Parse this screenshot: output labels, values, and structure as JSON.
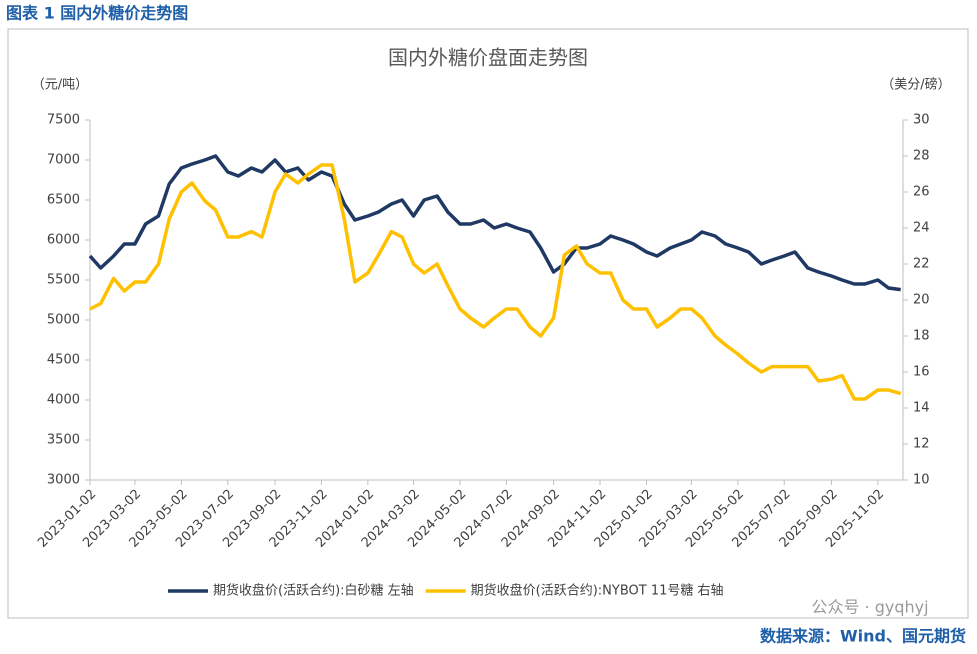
{
  "header": {
    "title": "图表 1  国内外糖价走势图"
  },
  "chart_data": {
    "type": "line",
    "title": "国内外糖价盘面走势图",
    "y_label": "（元/吨）",
    "y2_label": "（美分/磅）",
    "x": [
      "2023-01-02",
      "2023-01-16",
      "2023-02-02",
      "2023-02-16",
      "2023-03-02",
      "2023-03-16",
      "2023-04-02",
      "2023-04-16",
      "2023-05-02",
      "2023-05-16",
      "2023-06-02",
      "2023-06-16",
      "2023-07-02",
      "2023-07-16",
      "2023-08-02",
      "2023-08-16",
      "2023-09-02",
      "2023-09-16",
      "2023-10-02",
      "2023-10-16",
      "2023-11-02",
      "2023-11-16",
      "2023-12-02",
      "2023-12-16",
      "2024-01-02",
      "2024-01-16",
      "2024-02-02",
      "2024-02-16",
      "2024-03-02",
      "2024-03-16",
      "2024-04-02",
      "2024-04-16",
      "2024-05-02",
      "2024-05-16",
      "2024-06-02",
      "2024-06-16",
      "2024-07-02",
      "2024-07-16",
      "2024-08-02",
      "2024-08-16",
      "2024-09-02",
      "2024-09-16",
      "2024-10-02",
      "2024-10-16",
      "2024-11-02",
      "2024-11-16",
      "2024-12-02",
      "2024-12-16",
      "2025-01-02",
      "2025-01-16",
      "2025-02-02",
      "2025-02-16",
      "2025-03-02",
      "2025-03-16",
      "2025-04-02",
      "2025-04-16",
      "2025-05-02",
      "2025-05-16",
      "2025-06-02",
      "2025-06-16",
      "2025-07-02",
      "2025-07-16",
      "2025-08-02",
      "2025-08-16",
      "2025-09-02",
      "2025-09-16",
      "2025-10-02",
      "2025-10-16",
      "2025-11-02",
      "2025-11-16",
      "2025-12-02"
    ],
    "series": [
      {
        "name": "期货收盘价(活跃合约):白砂糖  左轴",
        "color": "#1f3864",
        "axis": "y",
        "values": [
          5800,
          5650,
          5800,
          5950,
          5950,
          6200,
          6300,
          6700,
          6900,
          6950,
          7000,
          7050,
          6850,
          6800,
          6900,
          6850,
          7000,
          6850,
          6900,
          6750,
          6850,
          6800,
          6450,
          6250,
          6300,
          6350,
          6450,
          6500,
          6300,
          6500,
          6550,
          6350,
          6200,
          6200,
          6250,
          6150,
          6200,
          6150,
          6100,
          5900,
          5600,
          5700,
          5900,
          5900,
          5950,
          6050,
          6000,
          5950,
          5850,
          5800,
          5900,
          5950,
          6000,
          6100,
          6050,
          5950,
          5900,
          5850,
          5700,
          5750,
          5800,
          5850,
          5650,
          5600,
          5550,
          5500,
          5450,
          5450,
          5500,
          5400,
          5380
        ]
      },
      {
        "name": "期货收盘价(活跃合约):NYBOT 11号糖  右轴",
        "color": "#ffc000",
        "axis": "y2",
        "values": [
          19.5,
          19.8,
          21.2,
          20.5,
          21.0,
          21.0,
          22.0,
          24.5,
          26.0,
          26.5,
          25.5,
          25.0,
          23.5,
          23.5,
          23.8,
          23.5,
          26.0,
          27.0,
          26.5,
          27.0,
          27.5,
          27.5,
          24.5,
          21.0,
          21.5,
          22.5,
          23.8,
          23.5,
          22.0,
          21.5,
          22.0,
          20.8,
          19.5,
          19.0,
          18.5,
          19.0,
          19.5,
          19.5,
          18.5,
          18.0,
          19.0,
          22.5,
          23.0,
          22.0,
          21.5,
          21.5,
          20.0,
          19.5,
          19.5,
          18.5,
          19.0,
          19.5,
          19.5,
          19.0,
          18.0,
          17.5,
          17.0,
          16.5,
          16.0,
          16.3,
          16.3,
          16.3,
          16.3,
          15.5,
          15.6,
          15.8,
          14.5,
          14.5,
          15.0,
          15.0,
          14.8
        ]
      }
    ],
    "xlim": [
      "2023-01-02",
      "2025-12-05"
    ],
    "xticks": [
      "2023-01-02",
      "2023-03-02",
      "2023-05-02",
      "2023-07-02",
      "2023-09-02",
      "2023-11-02",
      "2024-01-02",
      "2024-03-02",
      "2024-05-02",
      "2024-07-02",
      "2024-09-02",
      "2024-11-02",
      "2025-01-02",
      "2025-03-02",
      "2025-05-02",
      "2025-07-02",
      "2025-09-02",
      "2025-11-02"
    ],
    "ylim": [
      3000,
      7500
    ],
    "yticks": [
      3000,
      3500,
      4000,
      4500,
      5000,
      5500,
      6000,
      6500,
      7000,
      7500
    ],
    "y2lim": [
      10,
      30
    ],
    "y2ticks": [
      10,
      12,
      14,
      16,
      18,
      20,
      22,
      24,
      26,
      28,
      30
    ],
    "legend": "bottom",
    "grid": false
  },
  "watermark": "公众号 · gyqhyj",
  "footer": {
    "source": "数据来源：Wind、国元期货"
  }
}
